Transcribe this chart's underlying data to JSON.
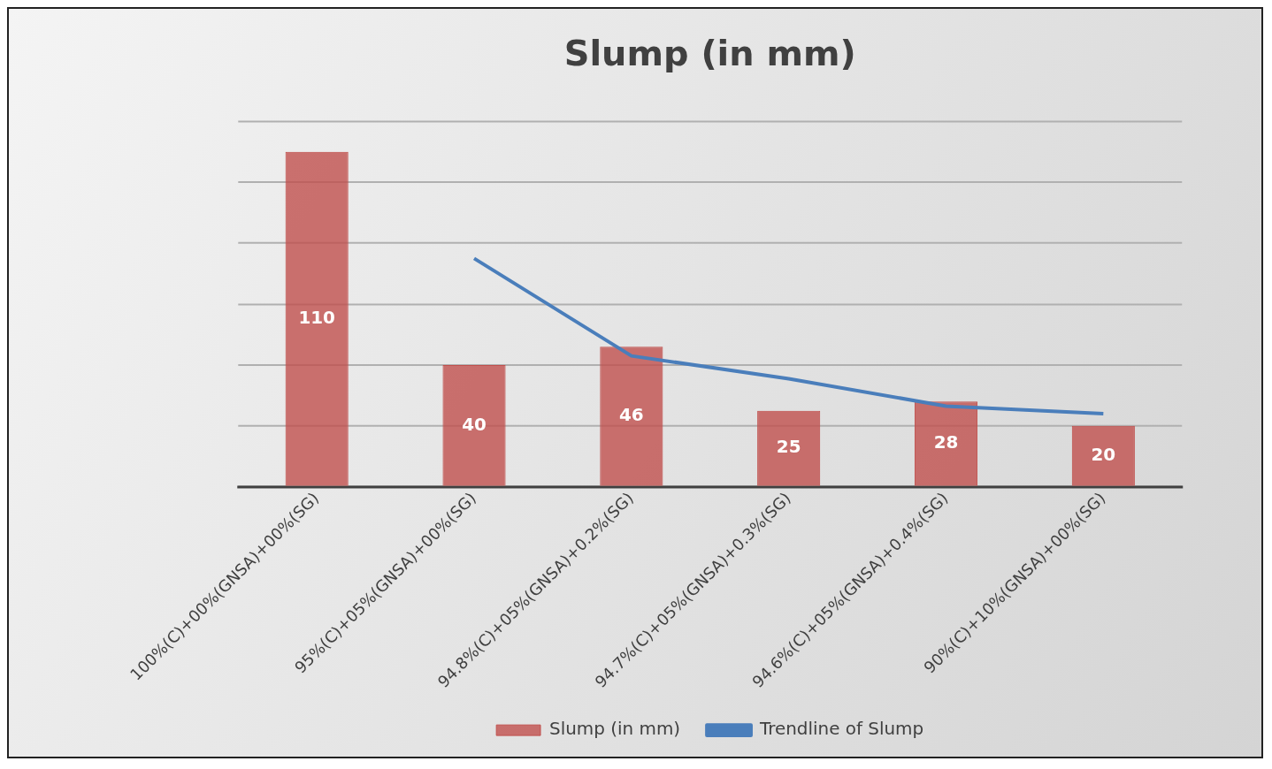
{
  "chart_data": {
    "type": "bar",
    "title": "Slump (in mm)",
    "categories": [
      "100%(C)+00%(GNSA)+00%(SG)",
      "95%(C)+05%(GNSA)+00%(SG)",
      "94.8%(C)+05%(GNSA)+0.2%(SG)",
      "94.7%(C)+05%(GNSA)+0.3%(SG)",
      "94.6%(C)+05%(GNSA)+0.4%(SG)",
      "90%(C)+10%(GNSA)+00%(SG)"
    ],
    "series": [
      {
        "name": "Slump (in mm)",
        "color": "#c0504d",
        "values": [
          110,
          40,
          46,
          25,
          28,
          20
        ],
        "value_labels": [
          "110",
          "40",
          "46",
          "25",
          "28",
          "20"
        ]
      },
      {
        "name": "Trendline of Slump",
        "type": "line",
        "color": "#4a7ebb",
        "values": [
          null,
          75,
          43,
          35.5,
          26.5,
          24
        ]
      }
    ],
    "ylim": [
      0,
      120
    ],
    "yticks": [
      {
        "value": 0,
        "label": null
      },
      {
        "value": 20,
        "label": null
      },
      {
        "value": 40,
        "label": null
      },
      {
        "value": 60,
        "label": null
      },
      {
        "value": 80,
        "label": null
      },
      {
        "value": 100,
        "label": null
      },
      {
        "value": 120,
        "label": null
      }
    ],
    "tick_labels": "x",
    "grid": "y",
    "legend": "bottom",
    "marker": "none",
    "line_style": "solid"
  }
}
